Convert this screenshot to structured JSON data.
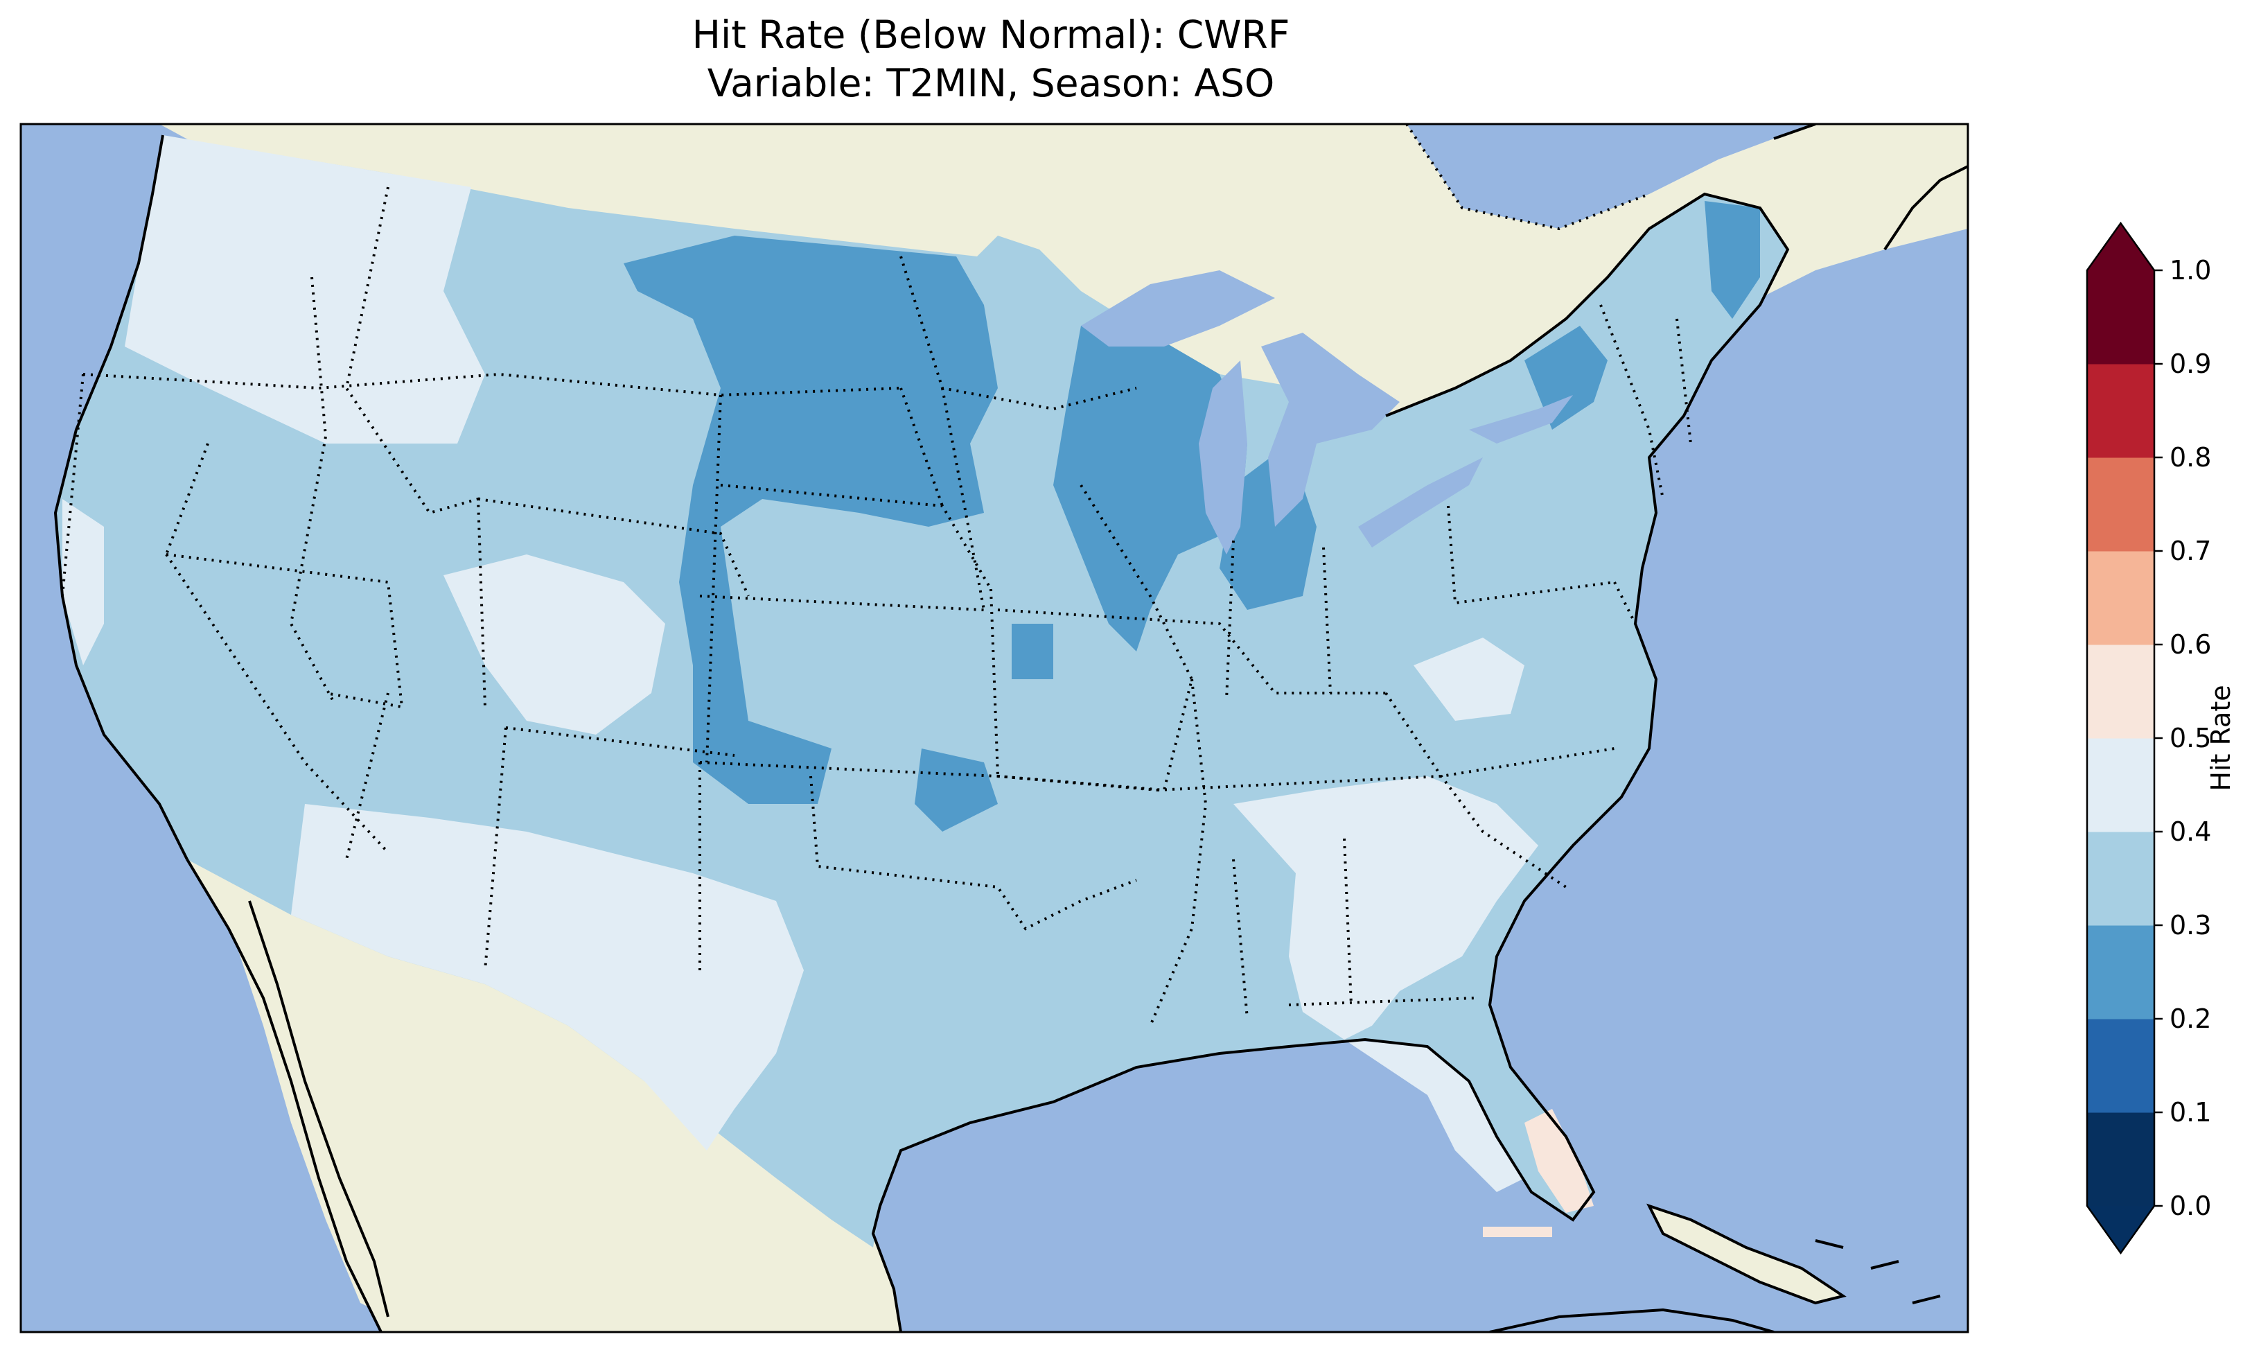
{
  "figure": {
    "title_line1": "Hit Rate (Below Normal): CWRF",
    "title_line2": "Variable: T2MIN, Season: ASO",
    "model": "CWRF",
    "variable": "T2MIN",
    "season": "ASO",
    "category": "Below Normal"
  },
  "map": {
    "region": "Contiguous United States",
    "projection": "Lambert Conformal",
    "colors": {
      "ocean": "#97b6e1",
      "land": "#efefdb",
      "coastline": "#000000",
      "state_borders": "#000000"
    },
    "field_classes_by_region": [
      {
        "region": "West Coast / Pacific Northwest",
        "hit_rate_range": [
          0.3,
          0.5
        ]
      },
      {
        "region": "Northern Plains / Upper Midwest",
        "hit_rate_range": [
          0.2,
          0.3
        ]
      },
      {
        "region": "Southwest / Four Corners",
        "hit_rate_range": [
          0.3,
          0.5
        ]
      },
      {
        "region": "Southern Plains / Texas",
        "hit_rate_range": [
          0.3,
          0.4
        ]
      },
      {
        "region": "Southeast",
        "hit_rate_range": [
          0.3,
          0.5
        ]
      },
      {
        "region": "Northeast",
        "hit_rate_range": [
          0.2,
          0.4
        ]
      },
      {
        "region": "South Florida",
        "hit_rate_range": [
          0.5,
          0.6
        ]
      }
    ]
  },
  "colorbar": {
    "label": "Hit Rate",
    "extend": "both",
    "ticks": [
      "0.0",
      "0.1",
      "0.2",
      "0.3",
      "0.4",
      "0.5",
      "0.6",
      "0.7",
      "0.8",
      "0.9",
      "1.0"
    ],
    "levels": [
      0.0,
      0.1,
      0.2,
      0.3,
      0.4,
      0.5,
      0.6,
      0.7,
      0.8,
      0.9,
      1.0
    ],
    "colors": [
      "#053061",
      "#2166ac",
      "#4393c3",
      "#92c5de",
      "#d1e5f0",
      "#f7f7f7",
      "#fddbc7",
      "#f4a582",
      "#d6604d",
      "#b2182b",
      "#67001f"
    ],
    "bin_colors": [
      "#06305f",
      "#2465ab",
      "#529bca",
      "#a7cfe3",
      "#e2edf5",
      "#f8e6dc",
      "#f5b597",
      "#e0735a",
      "#b8202f",
      "#6a001f"
    ]
  }
}
